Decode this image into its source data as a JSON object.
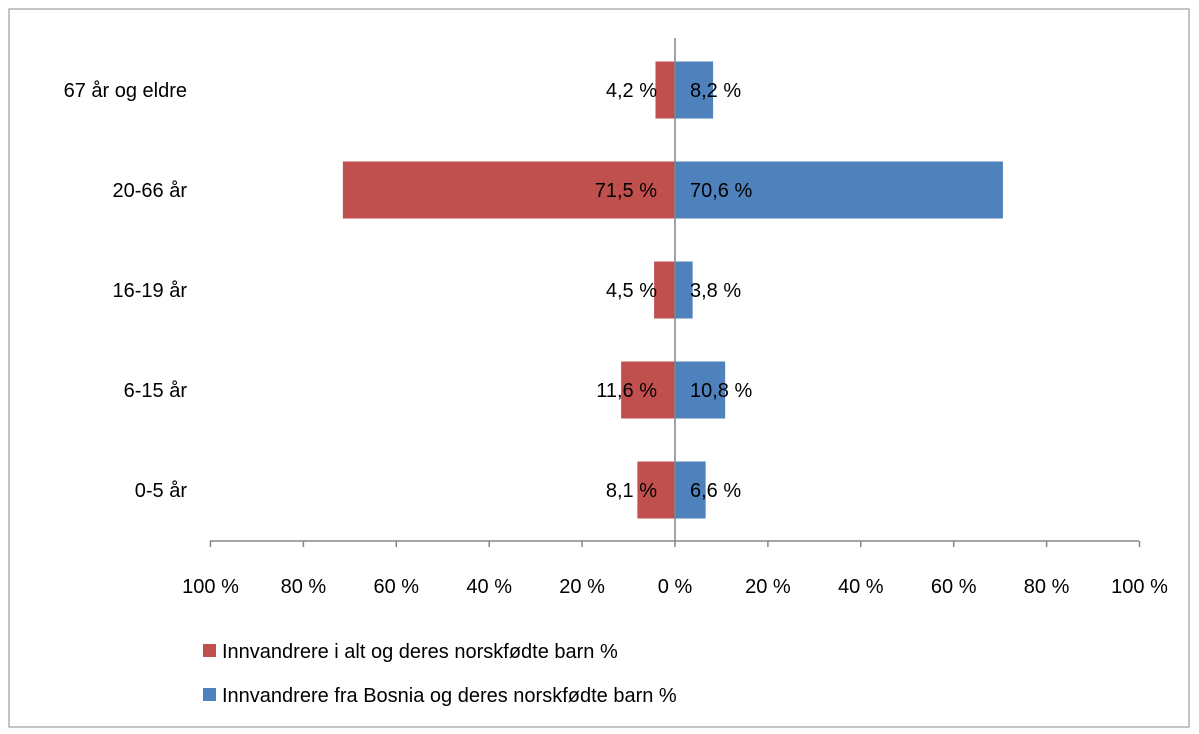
{
  "chart_data": {
    "type": "bar",
    "orientation": "horizontal",
    "layout": "diverging",
    "categories": [
      "67 år og eldre",
      "20-66 år",
      "16-19 år",
      "6-15 år",
      "0-5 år"
    ],
    "series": [
      {
        "name": "Innvandrere i alt og deres norskfødte barn %",
        "direction": "left",
        "color": "#C0504D",
        "values": [
          4.2,
          71.5,
          4.5,
          11.6,
          8.1
        ],
        "labels": [
          "4,2 %",
          "71,5 %",
          "4,5 %",
          "11,6 %",
          "8,1 %"
        ]
      },
      {
        "name": "Innvandrere fra Bosnia og deres norskfødte barn %",
        "direction": "right",
        "color": "#4F81BD",
        "values": [
          8.2,
          70.6,
          3.8,
          10.8,
          6.6
        ],
        "labels": [
          "8,2 %",
          "70,6 %",
          "3,8 %",
          "10,8 %",
          "6,6 %"
        ]
      }
    ],
    "xaxis": {
      "range": [
        -100,
        100
      ],
      "tick_labels": [
        "100 %",
        "80 %",
        "60 %",
        "40 %",
        "20 %",
        "0 %",
        "20 %",
        "40 %",
        "60 %",
        "80 %",
        "100 %"
      ]
    },
    "grid": false,
    "legend_position": "bottom-left"
  }
}
